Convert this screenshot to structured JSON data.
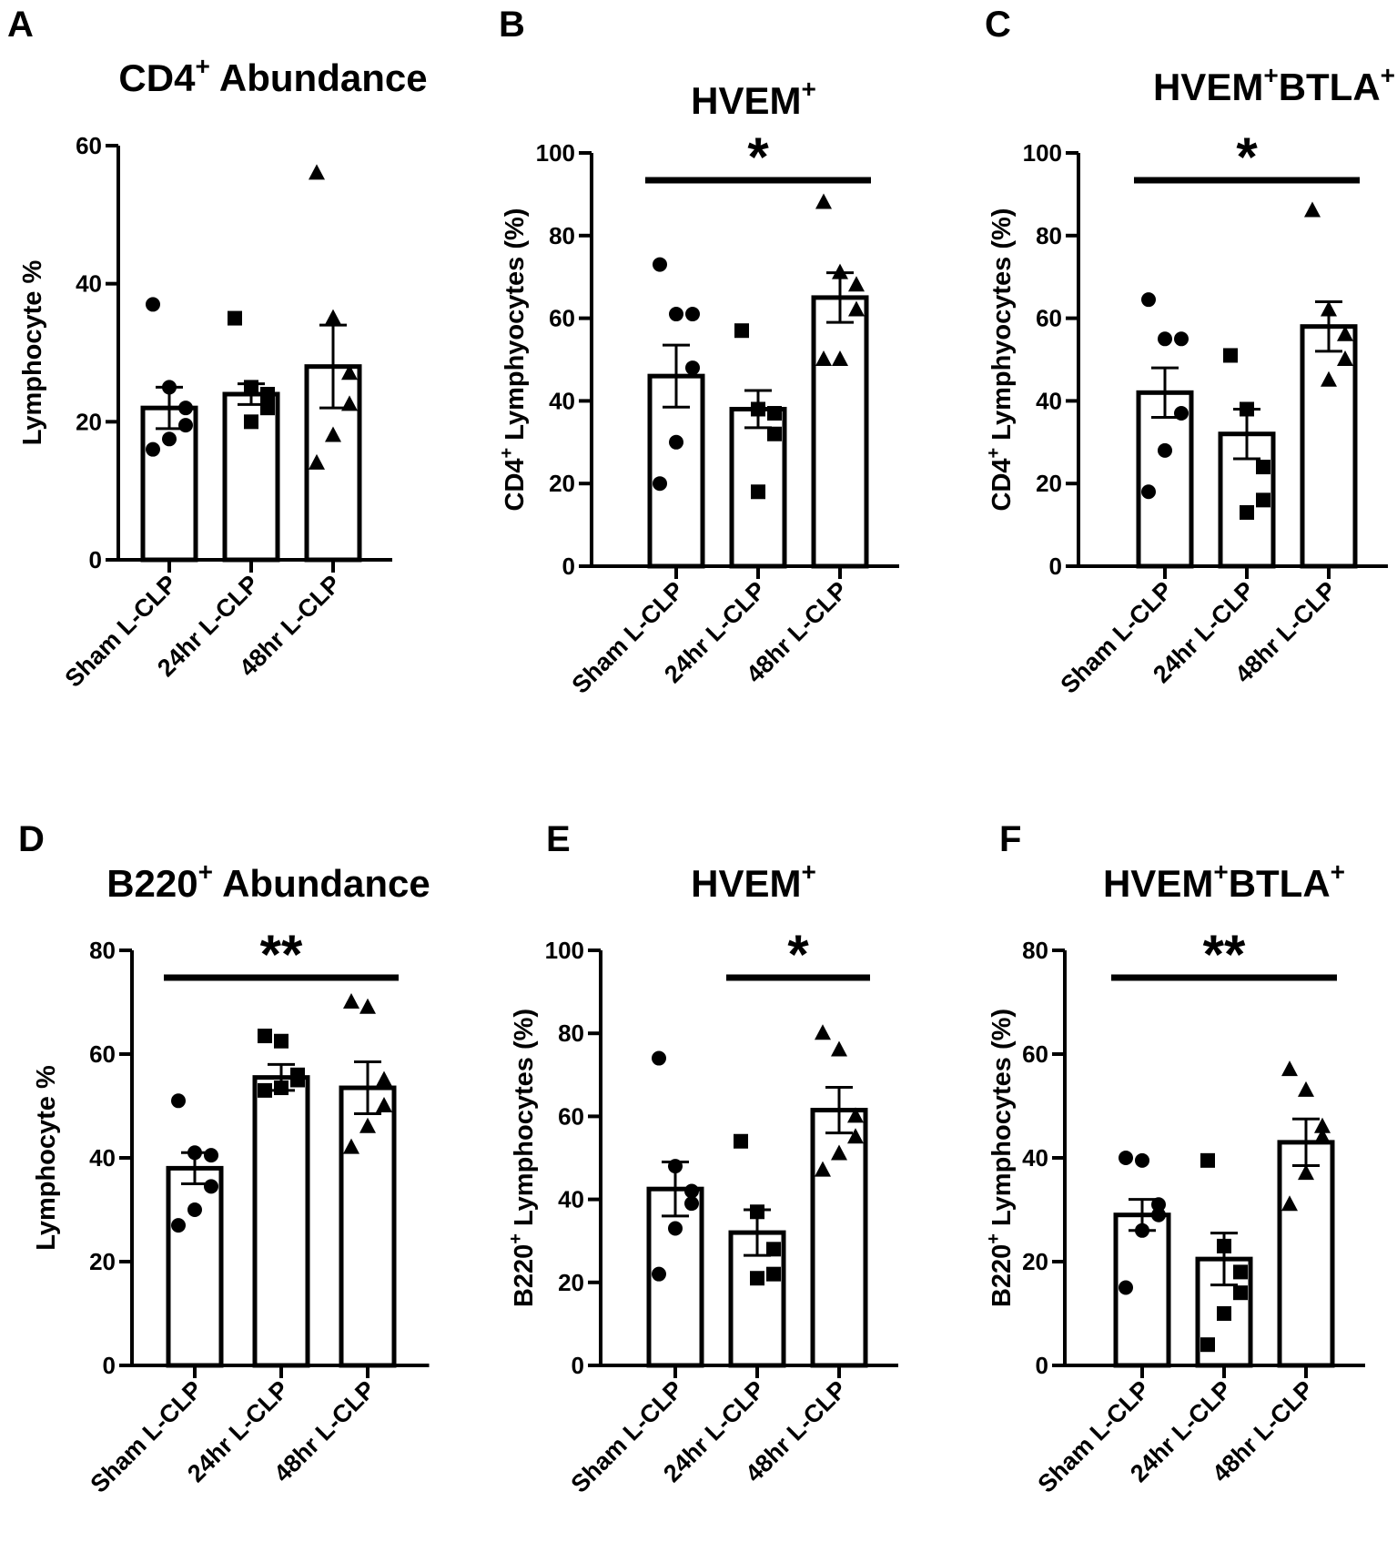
{
  "chart_data": [
    {
      "panel": "A",
      "type": "bar",
      "title": "CD4",
      "title_sup": "+",
      "title_suffix": "Abundance",
      "ylabel": "Lymphocyte %",
      "ylabel_prefix": "",
      "ylabel_sup": "",
      "ylim": [
        0,
        60
      ],
      "yticks": [
        "0",
        "20",
        "40",
        "60"
      ],
      "ytick_values": [
        0,
        20,
        40,
        60
      ],
      "categories": [
        "Sham L-CLP",
        "24hr L-CLP",
        "48hr L-CLP"
      ],
      "means": [
        22,
        24,
        28
      ],
      "sem": [
        3,
        1.5,
        6
      ],
      "points": [
        [
          37,
          25,
          22,
          19.5,
          17.5,
          16
        ],
        [
          35,
          25,
          24,
          22,
          20
        ],
        [
          56,
          35,
          27,
          22.5,
          18,
          14
        ]
      ],
      "markers": [
        "circle",
        "square",
        "triangle"
      ],
      "significance": null
    },
    {
      "panel": "B",
      "type": "bar",
      "title": "HVEM",
      "title_sup": "+",
      "title_suffix": "",
      "ylabel": "Lymphyocytes (%)",
      "ylabel_prefix": "CD4",
      "ylabel_sup": "+",
      "ylim": [
        0,
        100
      ],
      "yticks": [
        "0",
        "20",
        "40",
        "60",
        "80",
        "100"
      ],
      "ytick_values": [
        0,
        20,
        40,
        60,
        80,
        100
      ],
      "categories": [
        "Sham L-CLP",
        "24hr L-CLP",
        "48hr L-CLP"
      ],
      "means": [
        46,
        38,
        65
      ],
      "sem": [
        7.5,
        4.5,
        6
      ],
      "points": [
        [
          73,
          61,
          61,
          48,
          30,
          20
        ],
        [
          57,
          38,
          37,
          32,
          18
        ],
        [
          88,
          71,
          68,
          62,
          50,
          50
        ]
      ],
      "markers": [
        "circle",
        "square",
        "triangle"
      ],
      "significance": {
        "from": 0,
        "to": 2,
        "label": "*"
      }
    },
    {
      "panel": "C",
      "type": "bar",
      "title": "HVEM",
      "title_sup": "+",
      "title_suffix": "BTLA",
      "title_sup2": "+",
      "ylabel": "Lymphyocytes (%)",
      "ylabel_prefix": "CD4",
      "ylabel_sup": "+",
      "ylim": [
        0,
        100
      ],
      "yticks": [
        "0",
        "20",
        "40",
        "60",
        "80",
        "100"
      ],
      "ytick_values": [
        0,
        20,
        40,
        60,
        80,
        100
      ],
      "categories": [
        "Sham L-CLP",
        "24hr L-CLP",
        "48hr L-CLP"
      ],
      "means": [
        42,
        32,
        58
      ],
      "sem": [
        6,
        6,
        6
      ],
      "points": [
        [
          64.5,
          55,
          55,
          37,
          28,
          18
        ],
        [
          51,
          38,
          24,
          16,
          13
        ],
        [
          86,
          62,
          56,
          50,
          45
        ]
      ],
      "markers": [
        "circle",
        "square",
        "triangle"
      ],
      "significance": {
        "from": 0,
        "to": 2,
        "label": "*"
      }
    },
    {
      "panel": "D",
      "type": "bar",
      "title": "B220",
      "title_sup": "+",
      "title_suffix": "Abundance",
      "ylabel": "Lymphocyte %",
      "ylabel_prefix": "",
      "ylabel_sup": "",
      "ylim": [
        0,
        80
      ],
      "yticks": [
        "0",
        "20",
        "40",
        "60",
        "80"
      ],
      "ytick_values": [
        0,
        20,
        40,
        60,
        80
      ],
      "categories": [
        "Sham L-CLP",
        "24hr L-CLP",
        "48hr L-CLP"
      ],
      "means": [
        38,
        55.5,
        53.5
      ],
      "sem": [
        3,
        2.5,
        5
      ],
      "points": [
        [
          51,
          41,
          40.5,
          34.5,
          30,
          27
        ],
        [
          63.5,
          62.5,
          56,
          55,
          53.5,
          53
        ],
        [
          70,
          69,
          55,
          50,
          46,
          42
        ]
      ],
      "markers": [
        "circle",
        "square",
        "triangle"
      ],
      "significance": {
        "from": 0,
        "to": 2,
        "label": "**"
      }
    },
    {
      "panel": "E",
      "type": "bar",
      "title": "HVEM",
      "title_sup": "+",
      "title_suffix": "",
      "ylabel": "Lymphocytes  (%)",
      "ylabel_prefix": "B220",
      "ylabel_sup": "+",
      "ylim": [
        0,
        100
      ],
      "yticks": [
        "0",
        "20",
        "40",
        "60",
        "80",
        "100"
      ],
      "ytick_values": [
        0,
        20,
        40,
        60,
        80,
        100
      ],
      "categories": [
        "Sham L-CLP",
        "24hr L-CLP",
        "48hr L-CLP"
      ],
      "means": [
        42.5,
        32,
        61.5
      ],
      "sem": [
        6.5,
        5.5,
        5.5
      ],
      "points": [
        [
          74,
          48,
          42,
          39,
          33,
          22
        ],
        [
          54,
          37,
          28,
          22,
          21
        ],
        [
          80,
          76,
          60,
          55,
          51,
          47
        ]
      ],
      "markers": [
        "circle",
        "square",
        "triangle"
      ],
      "significance": {
        "from": 1,
        "to": 2,
        "label": "*"
      }
    },
    {
      "panel": "F",
      "type": "bar",
      "title": "HVEM",
      "title_sup": "+",
      "title_suffix": "BTLA",
      "title_sup2": "+",
      "ylabel": "Lymphocytes  (%)",
      "ylabel_prefix": "B220",
      "ylabel_sup": "+",
      "ylim": [
        0,
        80
      ],
      "yticks": [
        "0",
        "20",
        "40",
        "60",
        "80"
      ],
      "ytick_values": [
        0,
        20,
        40,
        60,
        80
      ],
      "categories": [
        "Sham L-CLP",
        "24hr L-CLP",
        "48hr L-CLP"
      ],
      "means": [
        29,
        20.5,
        43
      ],
      "sem": [
        3,
        5,
        4.5
      ],
      "points": [
        [
          40,
          39.5,
          31,
          29,
          26,
          15
        ],
        [
          39.5,
          23,
          18,
          14,
          10,
          4
        ],
        [
          57,
          53,
          46,
          44,
          37,
          31
        ]
      ],
      "markers": [
        "circle",
        "square",
        "triangle"
      ],
      "significance": {
        "from": 0,
        "to": 2,
        "label": "**"
      }
    }
  ]
}
